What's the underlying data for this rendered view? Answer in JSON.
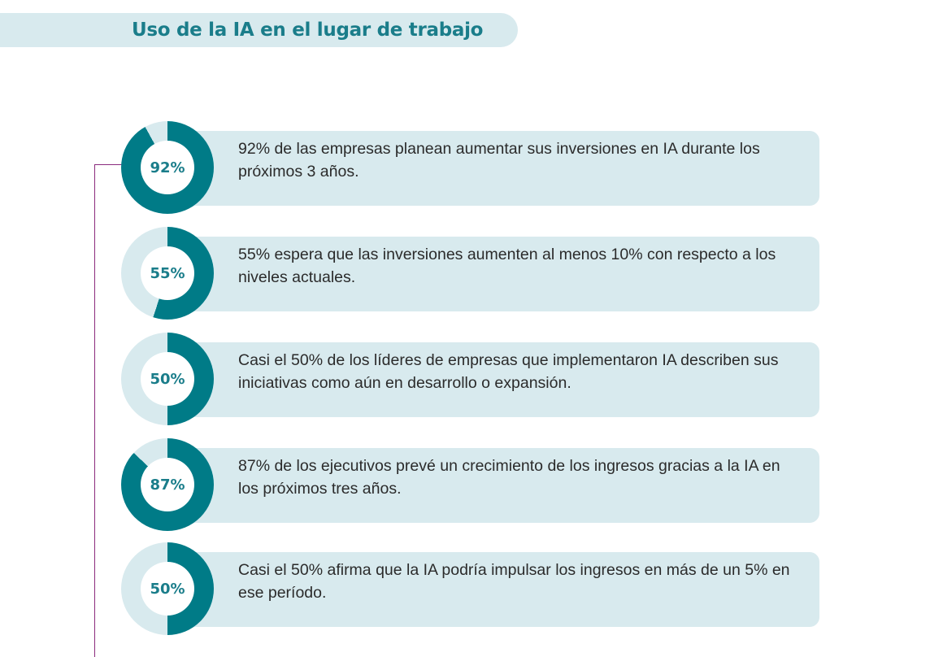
{
  "header": {
    "title": "Uso de la IA en el lugar de trabajo"
  },
  "colors": {
    "accent": "#007b87",
    "track": "#d8eaee",
    "card": "#d8eaee",
    "connector": "#8b2b7d"
  },
  "stats": [
    {
      "percent": 92,
      "label": "92%",
      "text": "92% de las empresas planean aumentar sus inversiones en IA durante los próximos 3 años."
    },
    {
      "percent": 55,
      "label": "55%",
      "text": "55% espera que las inversiones aumenten al menos 10% con respecto a los niveles actuales."
    },
    {
      "percent": 50,
      "label": "50%",
      "text": "Casi el 50% de los líderes de empresas que implementaron IA describen sus iniciativas como aún en desarrollo o expansión."
    },
    {
      "percent": 87,
      "label": "87%",
      "text": "87% de los ejecutivos prevé un crecimiento de los ingresos gracias a la IA en los próximos tres años."
    },
    {
      "percent": 50,
      "label": "50%",
      "text": "Casi el 50% afirma que la IA podría impulsar los ingresos en más de un 5% en ese período."
    }
  ]
}
